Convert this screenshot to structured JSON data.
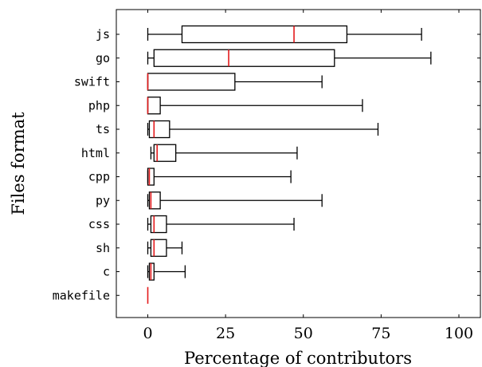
{
  "chart_data": {
    "type": "boxplot",
    "orientation": "horizontal",
    "xlabel": "Percentage of contributors",
    "ylabel": "Files format",
    "xlim": [
      -10,
      108
    ],
    "xticks": [
      0,
      25,
      50,
      75,
      100
    ],
    "grid": false,
    "colors": {
      "box": "#000000",
      "median": "#e41a1c"
    },
    "categories": [
      "js",
      "go",
      "swift",
      "php",
      "ts",
      "html",
      "cpp",
      "py",
      "css",
      "sh",
      "c",
      "makefile"
    ],
    "boxes": [
      {
        "label": "js",
        "whisker_low": 0,
        "q1": 11,
        "median": 47,
        "q3": 64,
        "whisker_high": 88
      },
      {
        "label": "go",
        "whisker_low": 0,
        "q1": 2,
        "median": 26,
        "q3": 60,
        "whisker_high": 91
      },
      {
        "label": "swift",
        "whisker_low": 0,
        "q1": 0,
        "median": 0,
        "q3": 28,
        "whisker_high": 56
      },
      {
        "label": "php",
        "whisker_low": 0,
        "q1": 0,
        "median": 0,
        "q3": 4,
        "whisker_high": 69
      },
      {
        "label": "ts",
        "whisker_low": 0,
        "q1": 0.5,
        "median": 2,
        "q3": 7,
        "whisker_high": 74
      },
      {
        "label": "html",
        "whisker_low": 1,
        "q1": 2,
        "median": 3,
        "q3": 9,
        "whisker_high": 48
      },
      {
        "label": "cpp",
        "whisker_low": 0,
        "q1": 0,
        "median": 0.5,
        "q3": 2,
        "whisker_high": 46
      },
      {
        "label": "py",
        "whisker_low": 0,
        "q1": 0.5,
        "median": 1,
        "q3": 4,
        "whisker_high": 56
      },
      {
        "label": "css",
        "whisker_low": 0,
        "q1": 1,
        "median": 2,
        "q3": 6,
        "whisker_high": 47
      },
      {
        "label": "sh",
        "whisker_low": 0,
        "q1": 1,
        "median": 2,
        "q3": 6,
        "whisker_high": 11
      },
      {
        "label": "c",
        "whisker_low": 0,
        "q1": 0.5,
        "median": 1,
        "q3": 2,
        "whisker_high": 12
      },
      {
        "label": "makefile",
        "whisker_low": 0,
        "q1": 0,
        "median": 0,
        "q3": 0,
        "whisker_high": 0
      }
    ]
  }
}
